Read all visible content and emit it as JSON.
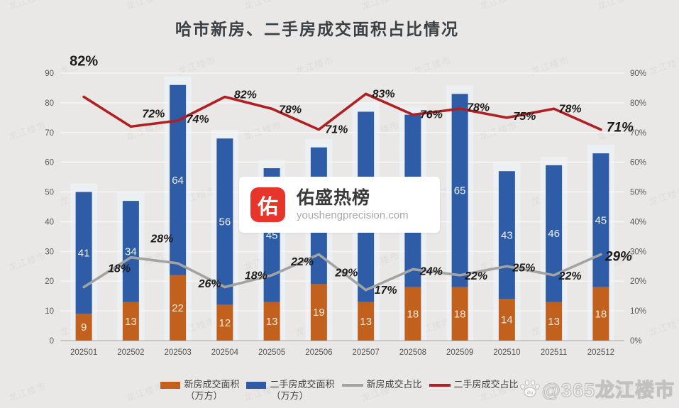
{
  "page": {
    "background": "#e9e8e6"
  },
  "title": "哈市新房、二手房成交面积占比情况",
  "chart_data": {
    "type": "combo",
    "categories": [
      "202501",
      "202502",
      "202503",
      "202504",
      "202505",
      "202506",
      "202507",
      "202508",
      "202509",
      "202510",
      "202511",
      "202512"
    ],
    "series": [
      {
        "name": "新房成交面积（万方）",
        "type": "bar",
        "stacked": true,
        "color": "#c2611e",
        "label_color": "#f7ead9",
        "values": [
          9,
          13,
          22,
          12,
          13,
          19,
          13,
          18,
          18,
          14,
          13,
          18
        ]
      },
      {
        "name": "二手房成交面积（万方）",
        "type": "bar",
        "stacked": true,
        "color": "#2e5ca6",
        "label_color": "#eef2f8",
        "values": [
          41,
          34,
          64,
          56,
          45,
          46,
          64,
          58,
          65,
          43,
          46,
          45
        ],
        "labels_hidden_by_watermark": [
          5,
          6,
          7
        ]
      },
      {
        "name": "新房成交占比",
        "type": "line",
        "axis": "right",
        "color": "#a3a3a3",
        "values": [
          18,
          28,
          26,
          18,
          22,
          29,
          17,
          24,
          22,
          25,
          22,
          29
        ],
        "labels": [
          "18%",
          "28%",
          "26%",
          "18%",
          "22%",
          "29%",
          "17%",
          "24%",
          "22%",
          "25%",
          "22%",
          "29%"
        ]
      },
      {
        "name": "二手房成交占比",
        "type": "line",
        "axis": "right",
        "color": "#b01f24",
        "values": [
          82,
          72,
          74,
          82,
          78,
          71,
          83,
          76,
          78,
          75,
          78,
          71
        ],
        "labels": [
          "82%",
          "72%",
          "74%",
          "82%",
          "78%",
          "71%",
          "83%",
          "76%",
          "78%",
          "75%",
          "78%",
          "71%"
        ]
      }
    ],
    "left_axis": {
      "min": 0,
      "max": 90,
      "step": 10,
      "ticks": [
        "0",
        "10",
        "20",
        "30",
        "40",
        "50",
        "60",
        "70",
        "80",
        "90"
      ]
    },
    "right_axis": {
      "min": 0,
      "max": 90,
      "step": 10,
      "ticks": [
        "0%",
        "10%",
        "20%",
        "30%",
        "40%",
        "50%",
        "60%",
        "70%",
        "80%",
        "90%"
      ]
    },
    "grid": true,
    "legend_position": "bottom",
    "data_label_color": "#1b1b1b",
    "axis_label_color": "#595959",
    "band_color": "#eef1f6"
  },
  "legend": {
    "items": [
      {
        "label": "新房成交面积",
        "label2": "（万方）",
        "swatch": "bar",
        "color": "#c2611e"
      },
      {
        "label": "二手房成交面积",
        "label2": "（万方）",
        "swatch": "bar",
        "color": "#2e5ca6"
      },
      {
        "label": "新房成交占比",
        "label2": "",
        "swatch": "line",
        "color": "#a3a3a3"
      },
      {
        "label": "二手房成交占比",
        "label2": "",
        "swatch": "line",
        "color": "#b01f24"
      }
    ]
  },
  "watermark_card": {
    "icon_text": "佑",
    "icon_color": "#e8352c",
    "title": "佑盛热榜",
    "subtitle": "youshengprecision.com"
  },
  "corner_watermark": {
    "icon": "baidu-paw-icon",
    "text": "@365龙江楼市"
  },
  "background_watermark": {
    "text": "龙江楼市"
  }
}
